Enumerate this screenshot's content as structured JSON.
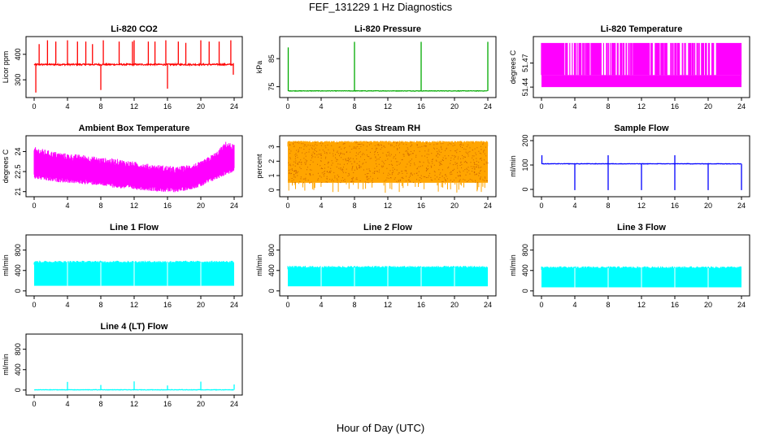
{
  "title": "FEF_131229  1 Hz Diagnostics",
  "xlabel": "Hour of Day (UTC)",
  "chart_data": [
    {
      "type": "line",
      "title": "Li-820 CO2",
      "ylabel": "Licor ppm",
      "xlim": [
        0,
        24
      ],
      "xticks": [
        0,
        4,
        8,
        12,
        16,
        20,
        24
      ],
      "ylim": [
        240,
        460
      ],
      "yticks": [
        300,
        400
      ],
      "color": "#ff0000",
      "baseline": 360,
      "noise": 6,
      "spikes": [
        {
          "x": 0.2,
          "y": 250
        },
        {
          "x": 0.6,
          "y": 440
        },
        {
          "x": 1.6,
          "y": 455
        },
        {
          "x": 2.6,
          "y": 450
        },
        {
          "x": 4.0,
          "y": 455
        },
        {
          "x": 5.2,
          "y": 450
        },
        {
          "x": 6.2,
          "y": 450
        },
        {
          "x": 7.0,
          "y": 440
        },
        {
          "x": 8.0,
          "y": 260
        },
        {
          "x": 8.3,
          "y": 455
        },
        {
          "x": 10.2,
          "y": 450
        },
        {
          "x": 11.8,
          "y": 450
        },
        {
          "x": 12.0,
          "y": 455
        },
        {
          "x": 13.7,
          "y": 450
        },
        {
          "x": 14.5,
          "y": 450
        },
        {
          "x": 15.8,
          "y": 455
        },
        {
          "x": 16.0,
          "y": 265
        },
        {
          "x": 17.3,
          "y": 450
        },
        {
          "x": 18.2,
          "y": 445
        },
        {
          "x": 20.0,
          "y": 455
        },
        {
          "x": 21.0,
          "y": 450
        },
        {
          "x": 22.2,
          "y": 450
        },
        {
          "x": 23.6,
          "y": 455
        },
        {
          "x": 23.9,
          "y": 320
        }
      ]
    },
    {
      "type": "line",
      "title": "Li-820 Pressure",
      "ylabel": "kPa",
      "xlim": [
        0,
        24
      ],
      "xticks": [
        0,
        4,
        8,
        12,
        16,
        20,
        24
      ],
      "ylim": [
        72,
        92
      ],
      "yticks": [
        75,
        85
      ],
      "color": "#00aa00",
      "baseline": 73.5,
      "spikes": [
        {
          "x": 0.05,
          "y": 89
        },
        {
          "x": 8.0,
          "y": 91
        },
        {
          "x": 16.0,
          "y": 91
        },
        {
          "x": 24.0,
          "y": 91
        }
      ]
    },
    {
      "type": "area",
      "title": "Li-820 Temperature",
      "ylabel": "degrees C",
      "xlim": [
        0,
        24
      ],
      "xticks": [
        0,
        4,
        8,
        12,
        16,
        20,
        24
      ],
      "ylim": [
        51.43,
        51.5
      ],
      "yticks": [
        51.44,
        51.47
      ],
      "color": "#ff00ff"
    },
    {
      "type": "area",
      "title": "Ambient Box Temperature",
      "ylabel": "degrees C",
      "xlim": [
        0,
        24
      ],
      "xticks": [
        0,
        4,
        8,
        12,
        16,
        20,
        24
      ],
      "ylim": [
        20.8,
        25.0
      ],
      "yticks": [
        21.0,
        22.5,
        24.0
      ],
      "color": "#ff00ff",
      "x": [
        0,
        2,
        4,
        6,
        8,
        10,
        12,
        14,
        16,
        17,
        18,
        20,
        22,
        23,
        24
      ],
      "upper": [
        24.1,
        23.8,
        23.6,
        23.5,
        23.3,
        23.2,
        23.0,
        22.8,
        22.7,
        22.6,
        22.7,
        23.0,
        23.8,
        24.5,
        24.3
      ],
      "lower": [
        22.3,
        22.1,
        22.0,
        21.9,
        21.8,
        21.6,
        21.5,
        21.4,
        21.3,
        21.3,
        21.4,
        21.7,
        22.3,
        22.6,
        22.8
      ]
    },
    {
      "type": "area",
      "title": "Gas Stream RH",
      "ylabel": "percent",
      "xlim": [
        0,
        24
      ],
      "xticks": [
        0,
        4,
        8,
        12,
        16,
        20,
        24
      ],
      "ylim": [
        -0.3,
        3.6
      ],
      "yticks": [
        0,
        1,
        2,
        3
      ],
      "color": "#ffa500",
      "upper_value": 3.3,
      "lower_value": 0.5
    },
    {
      "type": "line",
      "title": "Sample Flow",
      "ylabel": "ml/min",
      "xlim": [
        0,
        24
      ],
      "xticks": [
        0,
        4,
        8,
        12,
        16,
        20,
        24
      ],
      "ylim": [
        -20,
        210
      ],
      "yticks": [
        0,
        100,
        200
      ],
      "color": "#0000ff",
      "baseline": 105,
      "spikes": [
        {
          "x": 0.05,
          "y": 140
        },
        {
          "x": 4.0,
          "y": -3
        },
        {
          "x": 8.0,
          "y": 140
        },
        {
          "x": 8.0,
          "y": -3
        },
        {
          "x": 12.0,
          "y": -3
        },
        {
          "x": 16.0,
          "y": 140
        },
        {
          "x": 16.0,
          "y": -3
        },
        {
          "x": 20.0,
          "y": -3
        },
        {
          "x": 24.0,
          "y": -3
        }
      ]
    },
    {
      "type": "area",
      "title": "Line 1 Flow",
      "ylabel": "ml/min",
      "xlim": [
        0,
        24
      ],
      "xticks": [
        0,
        4,
        8,
        12,
        16,
        20,
        24
      ],
      "ylim": [
        -50,
        1050
      ],
      "yticks": [
        0,
        400,
        800
      ],
      "color": "#00ffff",
      "upper_value": 560,
      "lower_value": 100
    },
    {
      "type": "area",
      "title": "Line 2 Flow",
      "ylabel": "ml/min",
      "xlim": [
        0,
        24
      ],
      "xticks": [
        0,
        4,
        8,
        12,
        16,
        20,
        24
      ],
      "ylim": [
        -50,
        1050
      ],
      "yticks": [
        0,
        400,
        800
      ],
      "color": "#00ffff",
      "upper_value": 460,
      "lower_value": 90
    },
    {
      "type": "area",
      "title": "Line 3 Flow",
      "ylabel": "ml/min",
      "xlim": [
        0,
        24
      ],
      "xticks": [
        0,
        4,
        8,
        12,
        16,
        20,
        24
      ],
      "ylim": [
        -50,
        1050
      ],
      "yticks": [
        0,
        400,
        800
      ],
      "color": "#00ffff",
      "upper_value": 450,
      "lower_value": 70
    },
    {
      "type": "line",
      "title": "Line 4 (LT) Flow",
      "ylabel": "ml/min",
      "xlim": [
        0,
        24
      ],
      "xticks": [
        0,
        4,
        8,
        12,
        16,
        20,
        24
      ],
      "ylim": [
        -50,
        1050
      ],
      "yticks": [
        0,
        400,
        800
      ],
      "color": "#00ffff",
      "baseline": 5,
      "spikes": [
        {
          "x": 4.0,
          "y": 160
        },
        {
          "x": 8.0,
          "y": 100
        },
        {
          "x": 12.0,
          "y": 170
        },
        {
          "x": 16.0,
          "y": 90
        },
        {
          "x": 20.0,
          "y": 165
        },
        {
          "x": 24.0,
          "y": 110
        }
      ]
    }
  ]
}
